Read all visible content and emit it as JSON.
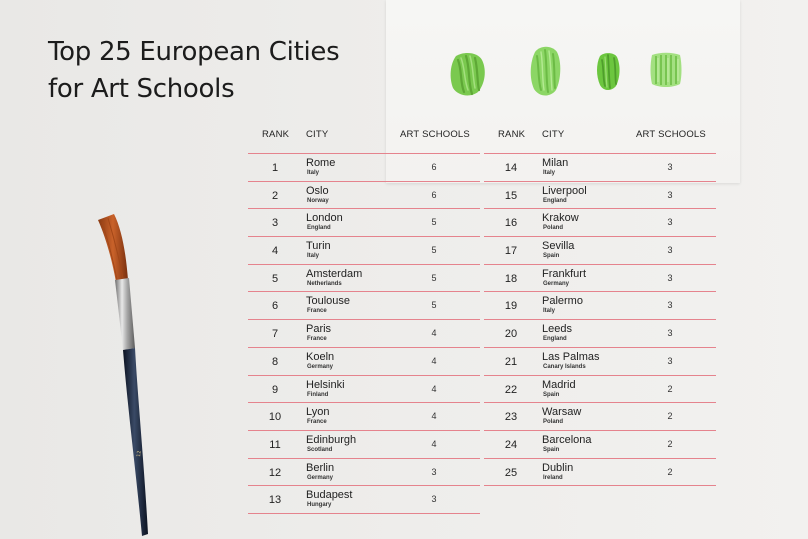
{
  "title_line1": "Top 25 European Cities",
  "title_line2": "for Art Schools",
  "headers": {
    "rank": "RANK",
    "city": "CITY",
    "schools": "ART SCHOOLS"
  },
  "accent_color": "#e5838d",
  "paint_color": "#7ac94f",
  "cities": [
    {
      "rank": "1",
      "city": "Rome",
      "country": "Italy",
      "schools": "6"
    },
    {
      "rank": "2",
      "city": "Oslo",
      "country": "Norway",
      "schools": "6"
    },
    {
      "rank": "3",
      "city": "London",
      "country": "England",
      "schools": "5"
    },
    {
      "rank": "4",
      "city": "Turin",
      "country": "Italy",
      "schools": "5"
    },
    {
      "rank": "5",
      "city": "Amsterdam",
      "country": "Netherlands",
      "schools": "5"
    },
    {
      "rank": "6",
      "city": "Toulouse",
      "country": "France",
      "schools": "5"
    },
    {
      "rank": "7",
      "city": "Paris",
      "country": "France",
      "schools": "4"
    },
    {
      "rank": "8",
      "city": "Koeln",
      "country": "Germany",
      "schools": "4"
    },
    {
      "rank": "9",
      "city": "Helsinki",
      "country": "Finland",
      "schools": "4"
    },
    {
      "rank": "10",
      "city": "Lyon",
      "country": "France",
      "schools": "4"
    },
    {
      "rank": "11",
      "city": "Edinburgh",
      "country": "Scotland",
      "schools": "4"
    },
    {
      "rank": "12",
      "city": "Berlin",
      "country": "Germany",
      "schools": "3"
    },
    {
      "rank": "13",
      "city": "Budapest",
      "country": "Hungary",
      "schools": "3"
    },
    {
      "rank": "14",
      "city": "Milan",
      "country": "Italy",
      "schools": "3"
    },
    {
      "rank": "15",
      "city": "Liverpool",
      "country": "England",
      "schools": "3"
    },
    {
      "rank": "16",
      "city": "Krakow",
      "country": "Poland",
      "schools": "3"
    },
    {
      "rank": "17",
      "city": "Sevilla",
      "country": "Spain",
      "schools": "3"
    },
    {
      "rank": "18",
      "city": "Frankfurt",
      "country": "Germany",
      "schools": "3"
    },
    {
      "rank": "19",
      "city": "Palermo",
      "country": "Italy",
      "schools": "3"
    },
    {
      "rank": "20",
      "city": "Leeds",
      "country": "England",
      "schools": "3"
    },
    {
      "rank": "21",
      "city": "Las Palmas",
      "country": "Canary Islands",
      "schools": "3"
    },
    {
      "rank": "22",
      "city": "Madrid",
      "country": "Spain",
      "schools": "2"
    },
    {
      "rank": "23",
      "city": "Warsaw",
      "country": "Poland",
      "schools": "2"
    },
    {
      "rank": "24",
      "city": "Barcelona",
      "country": "Spain",
      "schools": "2"
    },
    {
      "rank": "25",
      "city": "Dublin",
      "country": "Ireland",
      "schools": "2"
    }
  ]
}
